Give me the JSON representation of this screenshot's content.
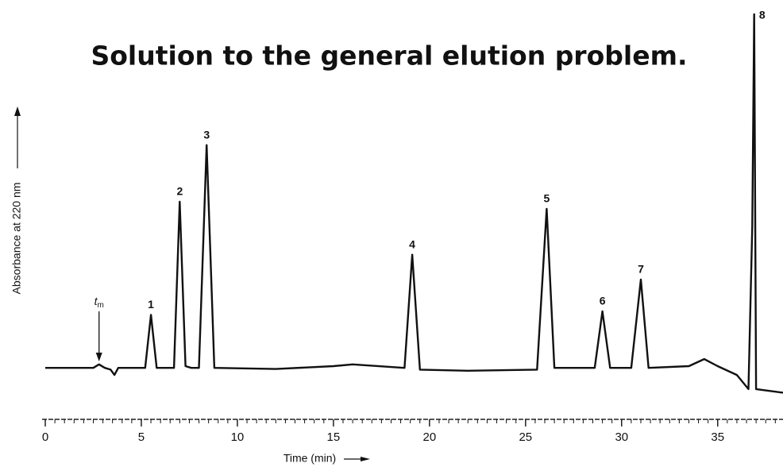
{
  "chart_data": {
    "type": "chromatogram",
    "title": "Solution to the general elution problem.",
    "x_label": "Time (min)",
    "y_label": "Absorbance at 220 nm",
    "xlim": [
      0,
      38.4
    ],
    "ylim": [
      -15,
      100
    ],
    "xticks": [
      0,
      5,
      10,
      15,
      20,
      25,
      30,
      35
    ],
    "xminorticks": [
      0.5,
      1,
      1.5,
      2,
      2.5,
      3,
      3.5,
      4,
      4.5,
      5.5,
      6,
      6.5,
      7,
      7.5,
      8,
      8.5,
      9,
      9.5,
      10.5,
      11,
      11.5,
      12,
      12.5,
      13,
      13.5,
      14,
      14.5,
      15.5,
      16,
      16.5,
      17,
      17.5,
      18,
      18.5,
      19,
      19.5,
      20.5,
      21,
      21.5,
      22,
      22.5,
      23,
      23.5,
      24,
      24.5,
      25.5,
      26,
      26.5,
      27,
      27.5,
      28,
      28.5,
      29,
      29.5,
      30.5,
      31,
      31.5,
      32,
      32.5,
      33,
      33.5,
      34,
      34.5,
      35.5,
      36,
      36.5,
      37,
      37.5,
      38
    ],
    "color": "#111111",
    "trace": {
      "x": [
        0,
        2.5,
        2.8,
        3.1,
        3.4,
        3.6,
        3.8,
        5.2,
        5.5,
        5.8,
        6.7,
        7.0,
        7.3,
        7.6,
        8.0,
        8.4,
        8.8,
        12,
        15,
        16,
        18.7,
        19.1,
        19.5,
        22,
        25.6,
        26.1,
        26.5,
        28.6,
        29.0,
        29.4,
        30.5,
        31.0,
        31.4,
        33.5,
        34.3,
        35,
        36,
        36.6,
        36.8,
        36.9,
        37.0,
        38.4
      ],
      "values": [
        0,
        0,
        1,
        0,
        -0.5,
        -2,
        0,
        0,
        15,
        0,
        0,
        47,
        0.5,
        0,
        0,
        63,
        0,
        -0.3,
        0.5,
        1,
        0,
        32,
        -0.5,
        -0.8,
        -0.5,
        45,
        0,
        0,
        16,
        0,
        0,
        25,
        0,
        0.5,
        2.5,
        0.5,
        -2,
        -6,
        40,
        100,
        -6,
        -7
      ]
    },
    "peaks": [
      {
        "label": "1",
        "time": 5.5,
        "height": 15
      },
      {
        "label": "2",
        "time": 7.0,
        "height": 47
      },
      {
        "label": "3",
        "time": 8.4,
        "height": 63
      },
      {
        "label": "4",
        "time": 19.1,
        "height": 32
      },
      {
        "label": "5",
        "time": 26.1,
        "height": 45
      },
      {
        "label": "6",
        "time": 29.0,
        "height": 16
      },
      {
        "label": "7",
        "time": 31.0,
        "height": 25
      },
      {
        "label": "8",
        "time": 36.9,
        "height": 100
      }
    ],
    "dead_time": {
      "text": "t",
      "subscript": "m",
      "time": 2.8
    }
  }
}
